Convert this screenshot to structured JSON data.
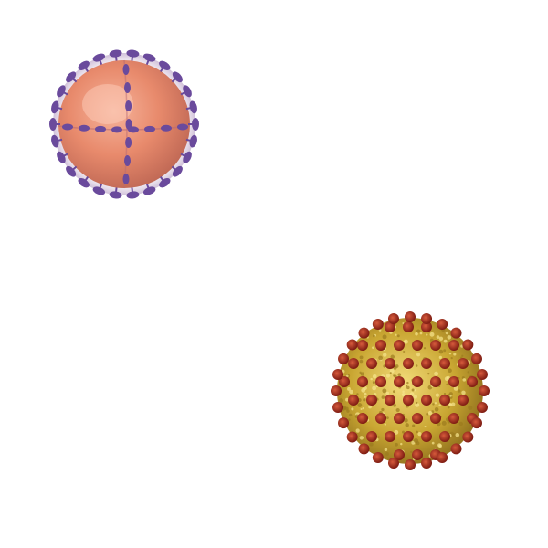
{
  "scene": {
    "background_color": "#ffffff",
    "objects": [
      {
        "kind": "virus-particle",
        "style": "enveloped sphere with surface spikes",
        "body_color": "#e88a6c",
        "spike_color": "#6a4a9c"
      },
      {
        "kind": "virus-particle",
        "style": "spherical capsid densely covered with knobs",
        "body_color": "#c9a632",
        "spike_color": "#a52a1c"
      }
    ]
  }
}
